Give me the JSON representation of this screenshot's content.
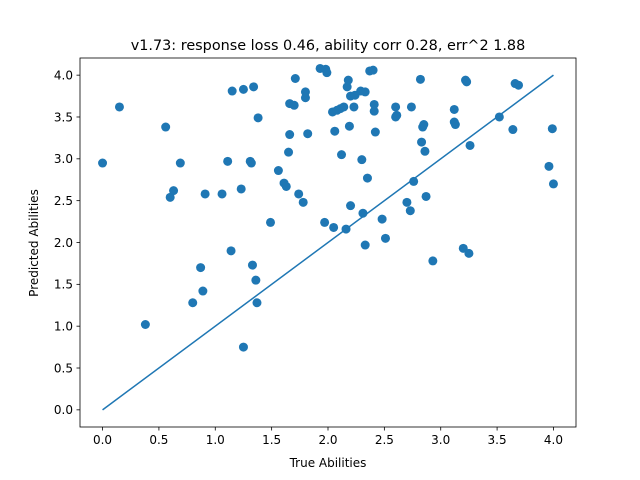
{
  "chart_data": {
    "type": "scatter",
    "title": "v1.73: response loss 0.46, ability corr 0.28, err^2 1.88",
    "xlabel": "True Abilities",
    "ylabel": "Predicted Abilities",
    "xlim": [
      -0.2,
      4.2
    ],
    "ylim": [
      -0.205,
      4.205
    ],
    "xticks": [
      0.0,
      0.5,
      1.0,
      1.5,
      2.0,
      2.5,
      3.0,
      3.5,
      4.0
    ],
    "yticks": [
      0.0,
      0.5,
      1.0,
      1.5,
      2.0,
      2.5,
      3.0,
      3.5,
      4.0
    ],
    "xtick_labels": [
      "0.0",
      "0.5",
      "1.0",
      "1.5",
      "2.0",
      "2.5",
      "3.0",
      "3.5",
      "4.0"
    ],
    "ytick_labels": [
      "0.0",
      "0.5",
      "1.0",
      "1.5",
      "2.0",
      "2.5",
      "3.0",
      "3.5",
      "4.0"
    ],
    "grid": false,
    "colors": {
      "points": "#1f77b4",
      "line": "#1f77b4",
      "axes": "#000000"
    },
    "line": {
      "x": [
        0.0,
        4.0
      ],
      "y": [
        0.0,
        4.0
      ]
    },
    "points": [
      {
        "x": 0.0,
        "y": 2.95
      },
      {
        "x": 0.15,
        "y": 3.62
      },
      {
        "x": 0.38,
        "y": 1.02
      },
      {
        "x": 0.56,
        "y": 3.38
      },
      {
        "x": 0.6,
        "y": 2.54
      },
      {
        "x": 0.63,
        "y": 2.62
      },
      {
        "x": 0.69,
        "y": 2.95
      },
      {
        "x": 0.8,
        "y": 1.28
      },
      {
        "x": 0.87,
        "y": 1.7
      },
      {
        "x": 0.89,
        "y": 1.42
      },
      {
        "x": 0.91,
        "y": 2.58
      },
      {
        "x": 1.06,
        "y": 2.58
      },
      {
        "x": 1.11,
        "y": 2.97
      },
      {
        "x": 1.14,
        "y": 1.9
      },
      {
        "x": 1.15,
        "y": 3.81
      },
      {
        "x": 1.23,
        "y": 2.64
      },
      {
        "x": 1.25,
        "y": 3.83
      },
      {
        "x": 1.25,
        "y": 0.75
      },
      {
        "x": 1.31,
        "y": 2.97
      },
      {
        "x": 1.32,
        "y": 2.95
      },
      {
        "x": 1.33,
        "y": 1.73
      },
      {
        "x": 1.34,
        "y": 3.86
      },
      {
        "x": 1.36,
        "y": 1.55
      },
      {
        "x": 1.37,
        "y": 1.28
      },
      {
        "x": 1.38,
        "y": 3.49
      },
      {
        "x": 1.49,
        "y": 2.24
      },
      {
        "x": 1.56,
        "y": 2.86
      },
      {
        "x": 1.61,
        "y": 2.71
      },
      {
        "x": 1.63,
        "y": 2.67
      },
      {
        "x": 1.65,
        "y": 3.08
      },
      {
        "x": 1.66,
        "y": 3.29
      },
      {
        "x": 1.66,
        "y": 3.66
      },
      {
        "x": 1.7,
        "y": 3.64
      },
      {
        "x": 1.71,
        "y": 3.96
      },
      {
        "x": 1.74,
        "y": 2.58
      },
      {
        "x": 1.78,
        "y": 2.48
      },
      {
        "x": 1.8,
        "y": 3.73
      },
      {
        "x": 1.8,
        "y": 3.8
      },
      {
        "x": 1.82,
        "y": 3.3
      },
      {
        "x": 1.93,
        "y": 4.08
      },
      {
        "x": 1.97,
        "y": 2.24
      },
      {
        "x": 1.98,
        "y": 4.07
      },
      {
        "x": 1.99,
        "y": 4.03
      },
      {
        "x": 2.04,
        "y": 3.56
      },
      {
        "x": 2.05,
        "y": 2.18
      },
      {
        "x": 2.06,
        "y": 3.33
      },
      {
        "x": 2.08,
        "y": 3.58
      },
      {
        "x": 2.11,
        "y": 3.6
      },
      {
        "x": 2.12,
        "y": 3.05
      },
      {
        "x": 2.14,
        "y": 3.62
      },
      {
        "x": 2.16,
        "y": 2.16
      },
      {
        "x": 2.17,
        "y": 3.86
      },
      {
        "x": 2.18,
        "y": 3.94
      },
      {
        "x": 2.19,
        "y": 3.39
      },
      {
        "x": 2.2,
        "y": 2.44
      },
      {
        "x": 2.2,
        "y": 3.75
      },
      {
        "x": 2.23,
        "y": 3.62
      },
      {
        "x": 2.24,
        "y": 3.76
      },
      {
        "x": 2.29,
        "y": 3.81
      },
      {
        "x": 2.3,
        "y": 2.99
      },
      {
        "x": 2.31,
        "y": 2.35
      },
      {
        "x": 2.33,
        "y": 3.8
      },
      {
        "x": 2.33,
        "y": 1.97
      },
      {
        "x": 2.35,
        "y": 2.77
      },
      {
        "x": 2.37,
        "y": 4.05
      },
      {
        "x": 2.4,
        "y": 4.06
      },
      {
        "x": 2.41,
        "y": 3.57
      },
      {
        "x": 2.41,
        "y": 3.65
      },
      {
        "x": 2.42,
        "y": 3.32
      },
      {
        "x": 2.48,
        "y": 2.28
      },
      {
        "x": 2.51,
        "y": 2.05
      },
      {
        "x": 2.6,
        "y": 3.5
      },
      {
        "x": 2.6,
        "y": 3.62
      },
      {
        "x": 2.61,
        "y": 3.52
      },
      {
        "x": 2.7,
        "y": 2.48
      },
      {
        "x": 2.73,
        "y": 2.38
      },
      {
        "x": 2.74,
        "y": 3.62
      },
      {
        "x": 2.76,
        "y": 2.73
      },
      {
        "x": 2.82,
        "y": 3.95
      },
      {
        "x": 2.83,
        "y": 3.2
      },
      {
        "x": 2.84,
        "y": 3.38
      },
      {
        "x": 2.85,
        "y": 3.41
      },
      {
        "x": 2.86,
        "y": 3.09
      },
      {
        "x": 2.87,
        "y": 2.55
      },
      {
        "x": 2.93,
        "y": 1.78
      },
      {
        "x": 3.12,
        "y": 3.59
      },
      {
        "x": 3.12,
        "y": 3.44
      },
      {
        "x": 3.13,
        "y": 3.41
      },
      {
        "x": 3.2,
        "y": 1.93
      },
      {
        "x": 3.22,
        "y": 3.94
      },
      {
        "x": 3.23,
        "y": 3.92
      },
      {
        "x": 3.25,
        "y": 1.87
      },
      {
        "x": 3.26,
        "y": 3.16
      },
      {
        "x": 3.52,
        "y": 3.5
      },
      {
        "x": 3.64,
        "y": 3.35
      },
      {
        "x": 3.66,
        "y": 3.9
      },
      {
        "x": 3.69,
        "y": 3.88
      },
      {
        "x": 3.96,
        "y": 2.91
      },
      {
        "x": 3.99,
        "y": 3.36
      },
      {
        "x": 4.0,
        "y": 2.7
      }
    ]
  }
}
